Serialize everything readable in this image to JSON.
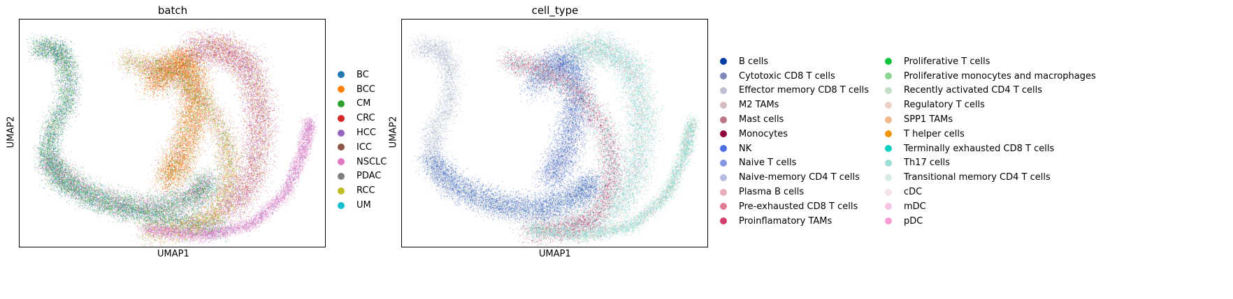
{
  "chart_data": [
    {
      "type": "scatter",
      "title": "batch",
      "xlabel": "UMAP1",
      "ylabel": "UMAP2",
      "grid": false,
      "legend_placement": "right, outside plot",
      "series": [
        {
          "name": "BC",
          "color": "#1f77b4"
        },
        {
          "name": "BCC",
          "color": "#ff7f0e"
        },
        {
          "name": "CM",
          "color": "#2ca02c"
        },
        {
          "name": "CRC",
          "color": "#d62728"
        },
        {
          "name": "HCC",
          "color": "#9467bd"
        },
        {
          "name": "ICC",
          "color": "#8c564b"
        },
        {
          "name": "NSCLC",
          "color": "#e377c2"
        },
        {
          "name": "PDAC",
          "color": "#7f7f7f"
        },
        {
          "name": "RCC",
          "color": "#bcbd22"
        },
        {
          "name": "UM",
          "color": "#17becf"
        }
      ]
    },
    {
      "type": "scatter",
      "title": "cell_type",
      "xlabel": "UMAP1",
      "ylabel": "UMAP2",
      "grid": false,
      "legend_placement": "right, outside plot, two columns",
      "series": [
        {
          "name": "B cells",
          "color": "#023fa5"
        },
        {
          "name": "Cytotoxic CD8 T cells",
          "color": "#7d87b9"
        },
        {
          "name": "Effector memory CD8 T cells",
          "color": "#bec1d4"
        },
        {
          "name": "M2 TAMs",
          "color": "#d6bcc0"
        },
        {
          "name": "Mast cells",
          "color": "#bb7784"
        },
        {
          "name": "Monocytes",
          "color": "#8e063b"
        },
        {
          "name": "NK",
          "color": "#4a6fe3"
        },
        {
          "name": "Naive T cells",
          "color": "#8595e1"
        },
        {
          "name": "Naive-memory CD4 T cells",
          "color": "#b5bbe3"
        },
        {
          "name": "Plasma B cells",
          "color": "#e6afb9"
        },
        {
          "name": "Pre-exhausted CD8 T cells",
          "color": "#e07b91"
        },
        {
          "name": "Proinflamatory TAMs",
          "color": "#d33f6a"
        },
        {
          "name": "Proliferative T cells",
          "color": "#11c638"
        },
        {
          "name": "Proliferative monocytes and macrophages",
          "color": "#8dd593"
        },
        {
          "name": "Recently activated CD4 T cells",
          "color": "#c6dec7"
        },
        {
          "name": "Regulatory T cells",
          "color": "#ead3c6"
        },
        {
          "name": "SPP1 TAMs",
          "color": "#f0b98d"
        },
        {
          "name": "T helper cells",
          "color": "#ef9708"
        },
        {
          "name": "Terminally exhausted CD8 T cells",
          "color": "#0fcfc0"
        },
        {
          "name": "Th17 cells",
          "color": "#9cded6"
        },
        {
          "name": "Transitional memory CD4 T cells",
          "color": "#d5eae7"
        },
        {
          "name": "cDC",
          "color": "#f3e1eb"
        },
        {
          "name": "mDC",
          "color": "#f6c4e1"
        },
        {
          "name": "pDC",
          "color": "#f79cd4"
        }
      ]
    }
  ]
}
